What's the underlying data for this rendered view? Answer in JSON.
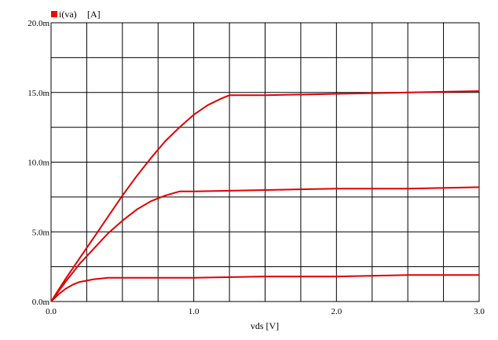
{
  "chart_data": {
    "type": "line",
    "legend": {
      "series_name": "i(va)",
      "unit": "[A]",
      "color": "#ff0000",
      "placement": "top-left"
    },
    "xlabel": "vds [V]",
    "ylabel": "",
    "xlim": [
      0,
      3.0
    ],
    "ylim": [
      0,
      0.02
    ],
    "x_tick_labels": [
      {
        "value": 0.0,
        "label": "0.0"
      },
      {
        "value": 1.0,
        "label": "1.0"
      },
      {
        "value": 2.0,
        "label": "2.0"
      },
      {
        "value": 3.0,
        "label": "3.0"
      }
    ],
    "y_tick_labels": [
      {
        "value": 0.0,
        "label": "0.0m"
      },
      {
        "value": 0.005,
        "label": "5.0m"
      },
      {
        "value": 0.01,
        "label": "10.0m"
      },
      {
        "value": 0.015,
        "label": "15.0m"
      },
      {
        "value": 0.02,
        "label": "20.0m"
      }
    ],
    "grid": true,
    "grid_x_step": 0.25,
    "grid_y_step": 0.0025,
    "line_color": "#e00000",
    "series": [
      {
        "x": [
          0,
          0.1,
          0.2,
          0.3,
          0.4,
          0.5,
          0.6,
          0.7,
          0.8,
          0.9,
          1.0,
          1.1,
          1.2,
          1.25,
          1.5,
          2.0,
          2.5,
          3.0
        ],
        "y": [
          0,
          0.0016,
          0.0031,
          0.0046,
          0.0061,
          0.0076,
          0.009,
          0.0103,
          0.0115,
          0.0125,
          0.0134,
          0.0141,
          0.0146,
          0.0148,
          0.0148,
          0.0149,
          0.015,
          0.0151
        ]
      },
      {
        "x": [
          0,
          0.1,
          0.2,
          0.3,
          0.4,
          0.5,
          0.6,
          0.7,
          0.8,
          0.9,
          1.0,
          1.5,
          2.0,
          2.5,
          3.0
        ],
        "y": [
          0,
          0.0014,
          0.0027,
          0.0038,
          0.0049,
          0.0058,
          0.0066,
          0.0072,
          0.0076,
          0.0079,
          0.0079,
          0.008,
          0.0081,
          0.0081,
          0.0082
        ]
      },
      {
        "x": [
          0,
          0.05,
          0.1,
          0.15,
          0.2,
          0.3,
          0.4,
          0.5,
          1.0,
          1.5,
          2.0,
          2.5,
          3.0
        ],
        "y": [
          0,
          0.0005,
          0.0009,
          0.0012,
          0.0014,
          0.0016,
          0.0017,
          0.0017,
          0.0017,
          0.0018,
          0.0018,
          0.0019,
          0.0019
        ]
      }
    ]
  }
}
